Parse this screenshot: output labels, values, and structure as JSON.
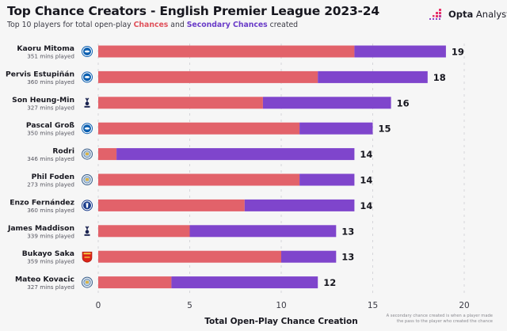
{
  "header": {
    "title": "Top Chance Creators - English Premier League 2023-24",
    "subtitle_prefix": "Top 10 players for total open-play ",
    "subtitle_chances": "Chances",
    "subtitle_mid": " and ",
    "subtitle_secondary": "Secondary Chances",
    "subtitle_suffix": " created"
  },
  "brand": {
    "logo_icon": "opta-dots-icon",
    "name_bold": "Opta",
    "name_regular": " Analyst"
  },
  "colors": {
    "chances": "#e2626a",
    "secondary": "#7f45cc",
    "background": "#f6f6f6",
    "text": "#1c1c26"
  },
  "footnote": {
    "line1": "A secondary chance created is when a player made",
    "line2": "the pass to the player who created the chance"
  },
  "chart_data": {
    "type": "bar",
    "orientation": "horizontal",
    "stacked": true,
    "title": "Top Chance Creators - English Premier League 2023-24",
    "subtitle": "Top 10 players for total open-play Chances and Secondary Chances created",
    "xlabel": "Total Open-Play Chance Creation",
    "ylabel": "",
    "xlim": [
      0,
      20
    ],
    "xticks": [
      0,
      5,
      10,
      15,
      20
    ],
    "grid": "vertical-dashed",
    "categories": [
      "Kaoru Mitoma",
      "Pervis Estupiñán",
      "Son Heung-Min",
      "Pascal Groß",
      "Rodri",
      "Phil Foden",
      "Enzo Fernández",
      "James Maddison",
      "Bukayo Saka",
      "Mateo Kovacic"
    ],
    "minutes": [
      "351 mins played",
      "360 mins played",
      "327 mins played",
      "350 mins played",
      "346 mins played",
      "273 mins played",
      "360 mins played",
      "339 mins played",
      "359 mins played",
      "327 mins played"
    ],
    "clubs": [
      "Brighton",
      "Brighton",
      "Tottenham",
      "Brighton",
      "Manchester City",
      "Manchester City",
      "Chelsea",
      "Tottenham",
      "Arsenal",
      "Manchester City"
    ],
    "series": [
      {
        "name": "Chances",
        "color": "#e2626a",
        "values": [
          14,
          12,
          9,
          11,
          1,
          11,
          8,
          5,
          10,
          4
        ]
      },
      {
        "name": "Secondary Chances",
        "color": "#7f45cc",
        "values": [
          5,
          6,
          7,
          4,
          13,
          3,
          6,
          8,
          3,
          8
        ]
      }
    ],
    "totals": [
      19,
      18,
      16,
      15,
      14,
      14,
      14,
      13,
      13,
      12
    ]
  }
}
